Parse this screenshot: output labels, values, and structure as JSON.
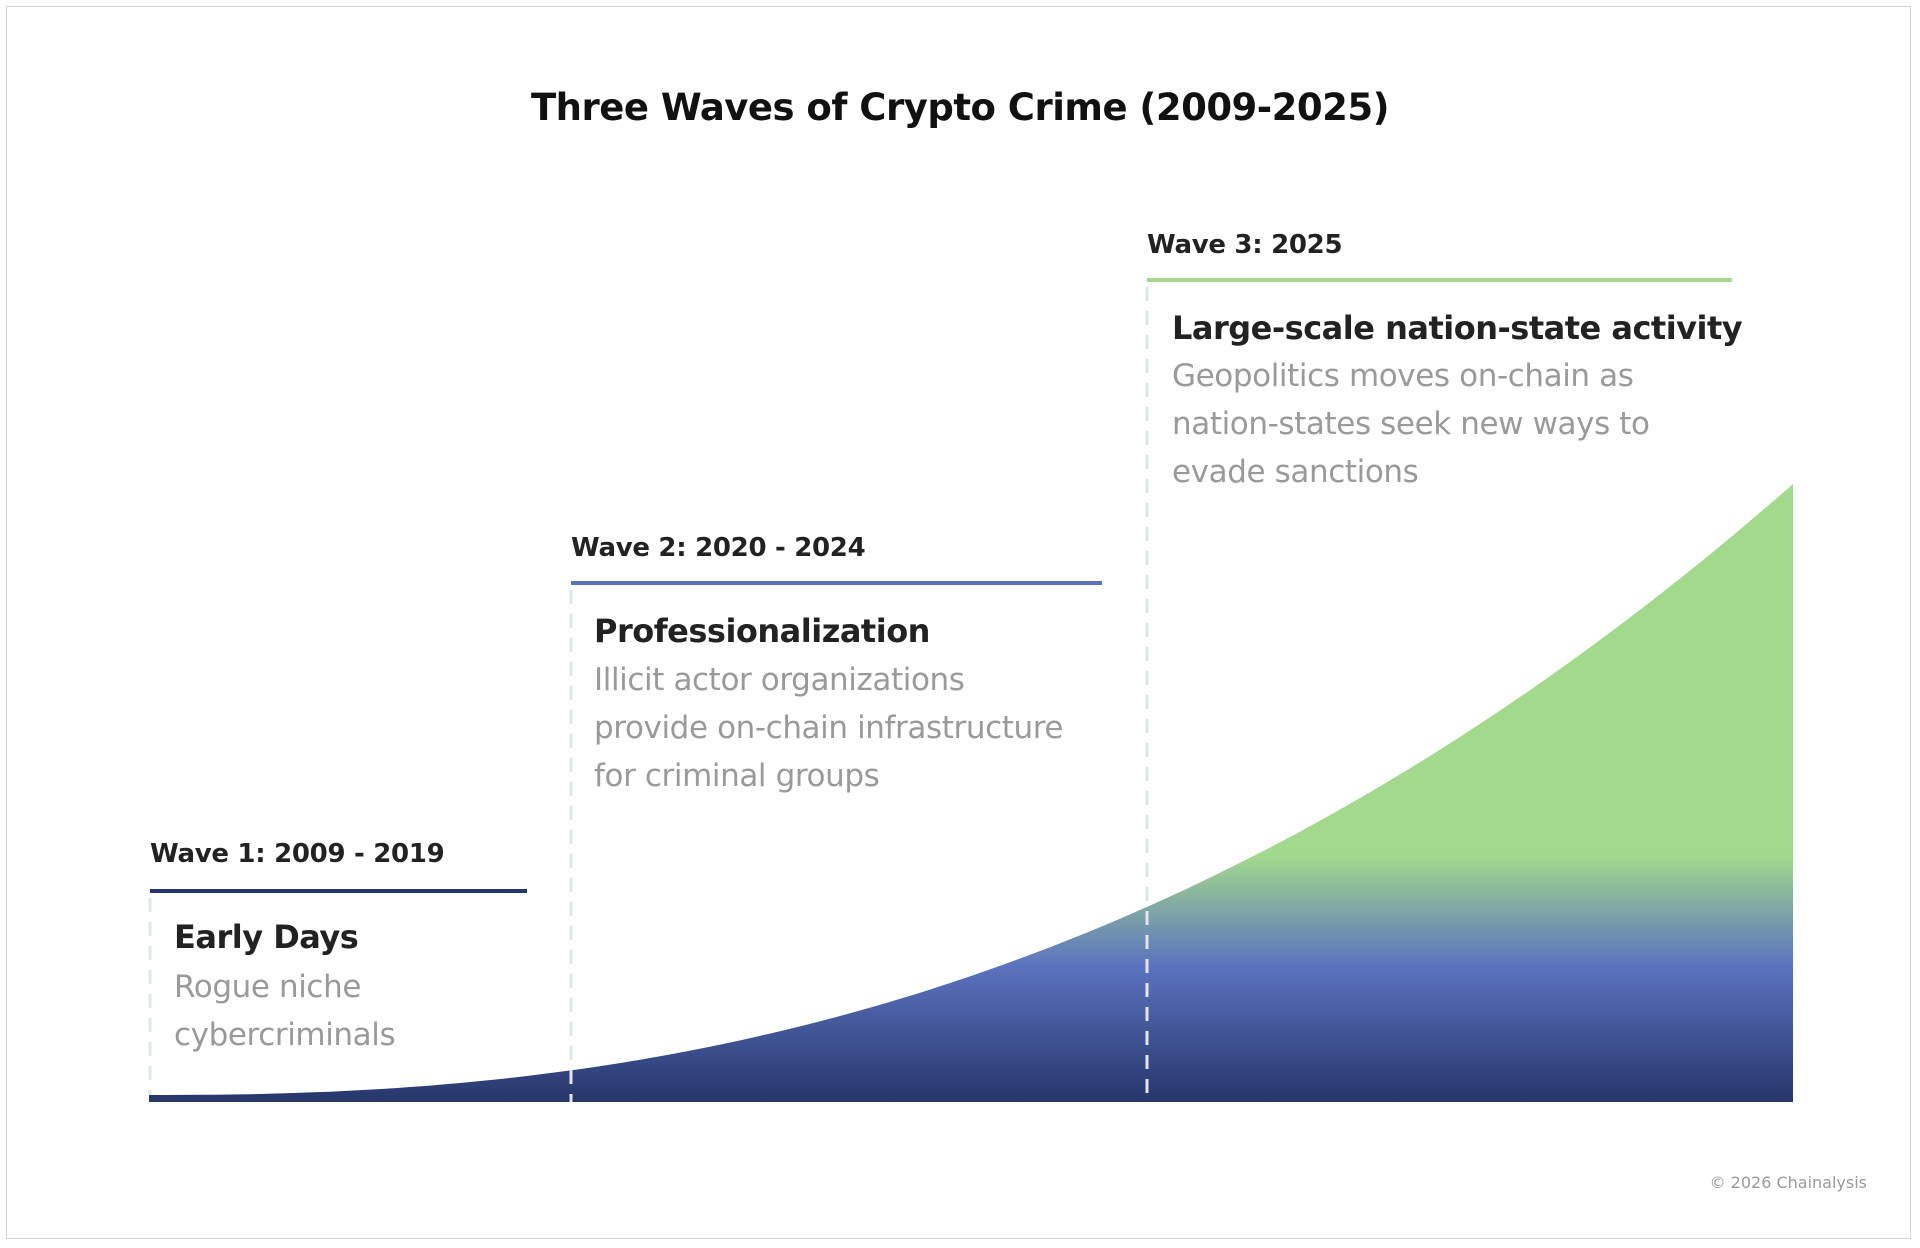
{
  "title": "Three Waves of Crypto Crime (2009-2025)",
  "colors": {
    "wave1": "#27366b",
    "wave2": "#5b73bf",
    "wave3": "#a3d98c",
    "dashed": "#dfe6ec"
  },
  "waves": [
    {
      "label": "Wave 1: 2009 - 2019",
      "heading": "Early Days",
      "body": "Rogue niche\ncybercriminals"
    },
    {
      "label": "Wave 2: 2020 - 2024",
      "heading": "Professionalization",
      "body": "Illicit actor organizations\nprovide on-chain infrastructure\nfor criminal groups"
    },
    {
      "label": "Wave 3: 2025",
      "heading": "Large-scale nation-state activity",
      "body": "Geopolitics moves on-chain as\nnation-states seek new ways to\nevade sanctions"
    }
  ],
  "copyright": "© 2026 Chainalysis"
}
